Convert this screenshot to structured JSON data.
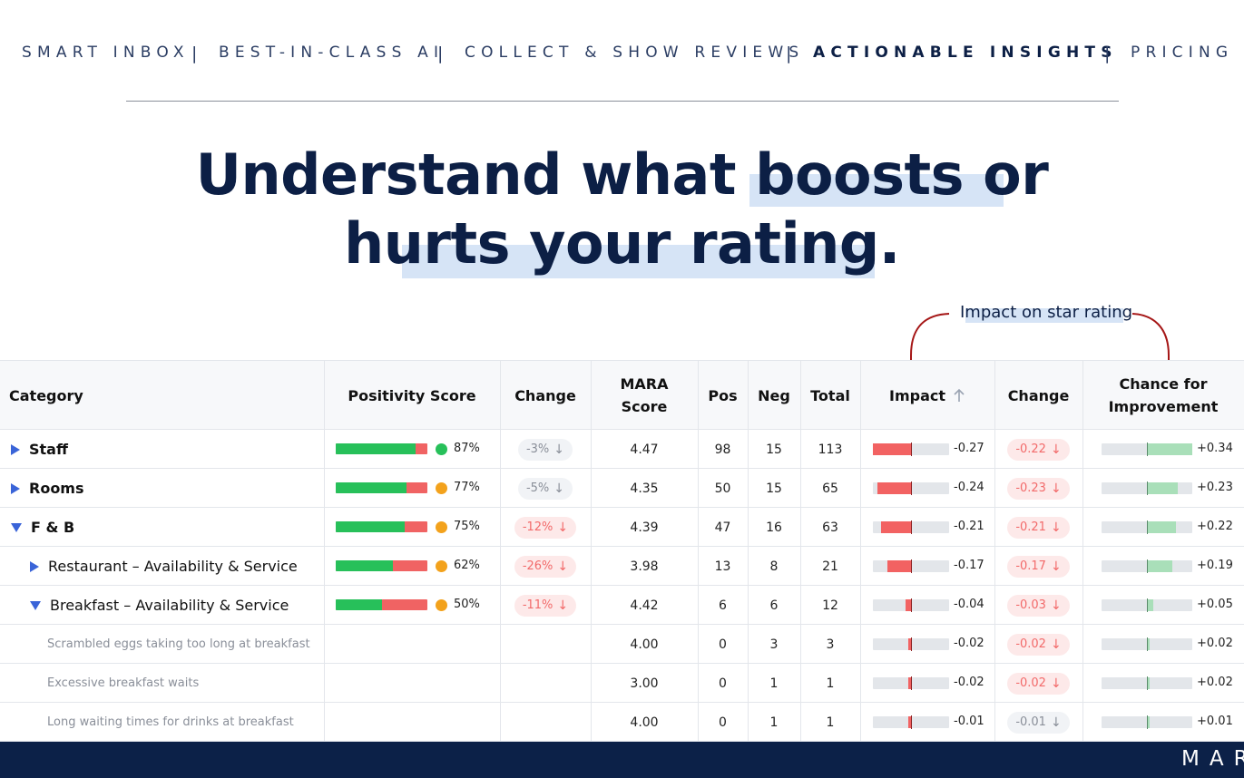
{
  "nav": {
    "items": [
      "SMART INBOX",
      "BEST-IN-CLASS AI",
      "COLLECT & SHOW REVIEWS",
      "ACTIONABLE INSIGHTS",
      "PRICING"
    ],
    "separator": "|",
    "active": "ACTIONABLE INSIGHTS"
  },
  "headline": {
    "line1": "Understand what boosts or",
    "line2": "hurts your rating."
  },
  "annotation": {
    "label": "Impact on star rating"
  },
  "table": {
    "columns": {
      "category": "Category",
      "positivity": "Positivity Score",
      "change": "Change",
      "mara_l1": "MARA",
      "mara_l2": "Score",
      "pos": "Pos",
      "neg": "Neg",
      "total": "Total",
      "impact": "Impact",
      "impact_sort_icon": "arrow-up-icon",
      "impact_change": "Change",
      "chance_l1": "Chance for",
      "chance_l2": "Improvement"
    },
    "rows": [
      {
        "category": "Staff",
        "level": 0,
        "expand": "collapsed",
        "positivity": 0.87,
        "pct": "87%",
        "dot": "#27c05a",
        "change": "-3%",
        "change_tone": "gray",
        "mara": "4.47",
        "pos": "98",
        "neg": "15",
        "total": "113",
        "impact": -0.27,
        "impact_label": "-0.27",
        "impact_change": "-0.22",
        "impact_change_tone": "red",
        "chance": 0.34,
        "chance_label": "+0.34"
      },
      {
        "category": "Rooms",
        "level": 0,
        "expand": "collapsed",
        "positivity": 0.77,
        "pct": "77%",
        "dot": "#f3a21c",
        "change": "-5%",
        "change_tone": "gray",
        "mara": "4.35",
        "pos": "50",
        "neg": "15",
        "total": "65",
        "impact": -0.24,
        "impact_label": "-0.24",
        "impact_change": "-0.23",
        "impact_change_tone": "red",
        "chance": 0.23,
        "chance_label": "+0.23"
      },
      {
        "category": "F & B",
        "level": 0,
        "expand": "expanded",
        "positivity": 0.75,
        "pct": "75%",
        "dot": "#f3a21c",
        "change": "-12%",
        "change_tone": "red",
        "mara": "4.39",
        "pos": "47",
        "neg": "16",
        "total": "63",
        "impact": -0.21,
        "impact_label": "-0.21",
        "impact_change": "-0.21",
        "impact_change_tone": "red",
        "chance": 0.22,
        "chance_label": "+0.22"
      },
      {
        "category": "Restaurant – Availability & Service",
        "level": 1,
        "expand": "collapsed",
        "positivity": 0.62,
        "pct": "62%",
        "dot": "#f3a21c",
        "change": "-26%",
        "change_tone": "red",
        "mara": "3.98",
        "pos": "13",
        "neg": "8",
        "total": "21",
        "impact": -0.17,
        "impact_label": "-0.17",
        "impact_change": "-0.17",
        "impact_change_tone": "red",
        "chance": 0.19,
        "chance_label": "+0.19"
      },
      {
        "category": "Breakfast – Availability & Service",
        "level": 1,
        "expand": "expanded",
        "positivity": 0.5,
        "pct": "50%",
        "dot": "#f3a21c",
        "change": "-11%",
        "change_tone": "red",
        "mara": "4.42",
        "pos": "6",
        "neg": "6",
        "total": "12",
        "impact": -0.04,
        "impact_label": "-0.04",
        "impact_change": "-0.03",
        "impact_change_tone": "red",
        "chance": 0.05,
        "chance_label": "+0.05"
      },
      {
        "category": "Scrambled eggs taking too long at breakfast",
        "level": 2,
        "expand": "none",
        "mara": "4.00",
        "pos": "0",
        "neg": "3",
        "total": "3",
        "impact": -0.02,
        "impact_label": "-0.02",
        "impact_change": "-0.02",
        "impact_change_tone": "red",
        "chance": 0.02,
        "chance_label": "+0.02"
      },
      {
        "category": "Excessive breakfast waits",
        "level": 2,
        "expand": "none",
        "mara": "3.00",
        "pos": "0",
        "neg": "1",
        "total": "1",
        "impact": -0.02,
        "impact_label": "-0.02",
        "impact_change": "-0.02",
        "impact_change_tone": "red",
        "chance": 0.02,
        "chance_label": "+0.02"
      },
      {
        "category": "Long waiting times for drinks at breakfast",
        "level": 2,
        "expand": "none",
        "mara": "4.00",
        "pos": "0",
        "neg": "1",
        "total": "1",
        "impact": -0.01,
        "impact_label": "-0.01",
        "impact_change": "-0.01",
        "impact_change_tone": "gray",
        "chance": 0.01,
        "chance_label": "+0.01"
      }
    ]
  },
  "footer": {
    "logo": "MAR"
  },
  "colors": {
    "navy": "#0c1f45",
    "accent_red": "#a51616",
    "bar_green": "#27c05a",
    "bar_red": "#f06363",
    "chance_green": "#a9dfb9",
    "highlight": "#d6e4f6"
  }
}
